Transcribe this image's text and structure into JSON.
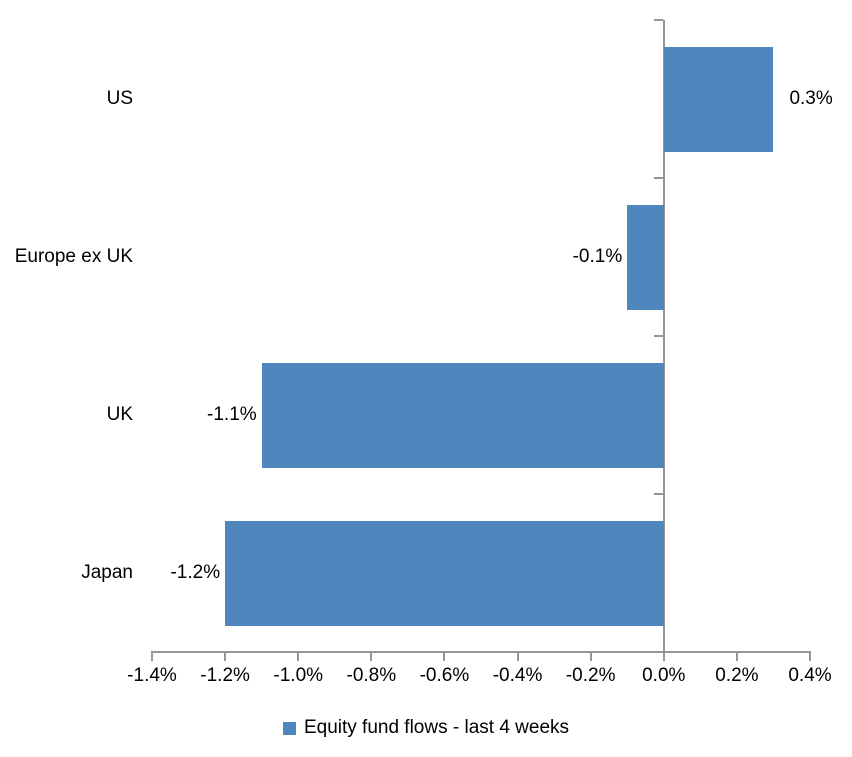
{
  "chart_data": {
    "type": "bar",
    "orientation": "horizontal",
    "title": "",
    "xlabel": "",
    "ylabel": "",
    "categories": [
      "US",
      "Europe ex UK",
      "UK",
      "Japan"
    ],
    "series": [
      {
        "name": "Equity fund flows - last 4 weeks",
        "values": [
          0.3,
          -0.1,
          -1.1,
          -1.2
        ],
        "data_labels": [
          "0.3%",
          "-0.1%",
          "-1.1%",
          "-1.2%"
        ]
      }
    ],
    "xlim": [
      -1.4,
      0.4
    ],
    "x_ticks": [
      -1.4,
      -1.2,
      -1.0,
      -0.8,
      -0.6,
      -0.4,
      -0.2,
      0.0,
      0.2,
      0.4
    ],
    "x_tick_labels": [
      "-1.4%",
      "-1.2%",
      "-1.0%",
      "-0.8%",
      "-0.6%",
      "-0.4%",
      "-0.2%",
      "0.0%",
      "0.2%",
      "0.4%"
    ],
    "grid": false,
    "legend": {
      "position": "bottom",
      "label": "Equity fund flows - last 4 weeks"
    },
    "colors": {
      "bar": "#4E86BD",
      "axis": "#969696",
      "text": "#000000",
      "background": "#FFFFFF"
    }
  }
}
